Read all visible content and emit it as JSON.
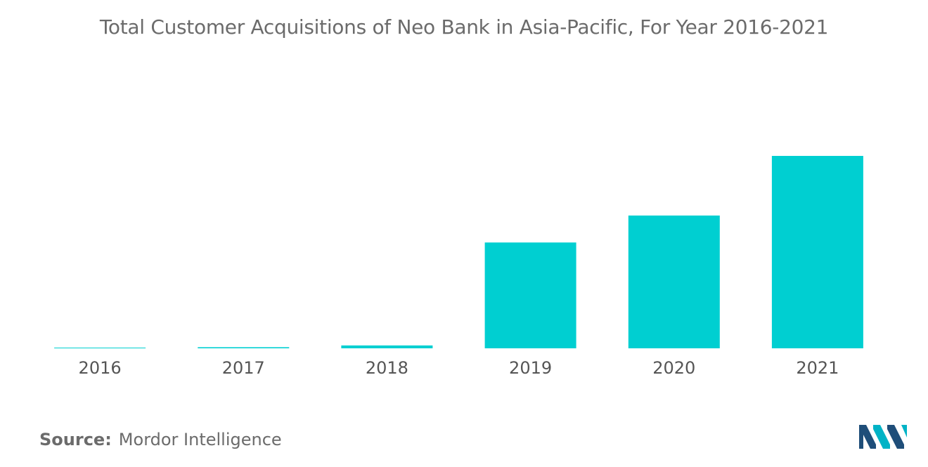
{
  "chart_data": {
    "type": "bar",
    "title": "Total Customer Acquisitions of Neo Bank in Asia-Pacific, For Year 2016-2021",
    "categories": [
      "2016",
      "2017",
      "2018",
      "2019",
      "2020",
      "2021"
    ],
    "values": [
      0.1,
      0.6,
      1.5,
      55,
      69,
      100
    ],
    "ylim": [
      0,
      100
    ],
    "ylabel": "",
    "xlabel": "",
    "grid": false,
    "bar_color": "#00cfd1"
  },
  "source": {
    "label": "Source:",
    "text": "Mordor Intelligence"
  },
  "logo": {
    "icon": "mordor-intelligence-logo",
    "colors": [
      "#1f4e79",
      "#00b3c6"
    ]
  }
}
